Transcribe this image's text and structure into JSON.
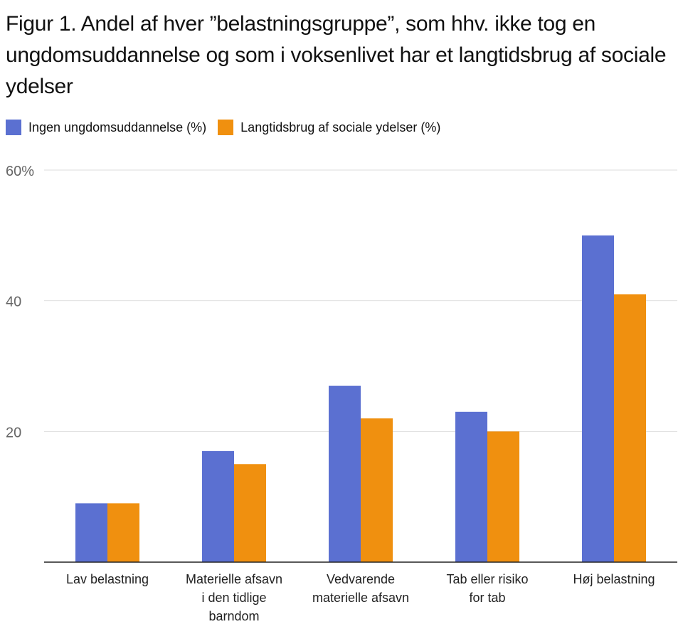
{
  "chart_data": {
    "type": "bar",
    "title": "Figur 1. Andel af hver ”belastningsgruppe”, som hhv. ikke tog en ungdomsuddannelse og som i voksenlivet har et langtidsbrug af sociale ydelser",
    "categories": [
      [
        "Lav belastning"
      ],
      [
        "Materielle afsavn",
        "i den tidlige",
        "barndom"
      ],
      [
        "Vedvarende",
        "materielle afsavn"
      ],
      [
        "Tab eller risiko",
        "for tab"
      ],
      [
        "Høj belastning"
      ]
    ],
    "series": [
      {
        "name": "Ingen ungdomsuddannelse (%)",
        "color": "#5B70D1",
        "values": [
          9,
          17,
          27,
          23,
          50
        ]
      },
      {
        "name": "Langtidsbrug af sociale ydelser (%)",
        "color": "#F0900F",
        "values": [
          9,
          15,
          22,
          20,
          41
        ]
      }
    ],
    "yticks": [
      {
        "value": 20,
        "label": "20"
      },
      {
        "value": 40,
        "label": "40"
      },
      {
        "value": 60,
        "label": "60%"
      }
    ],
    "ylim": [
      0,
      60
    ],
    "xlabel": "",
    "ylabel": "",
    "grid": true,
    "legend": "top-left"
  }
}
